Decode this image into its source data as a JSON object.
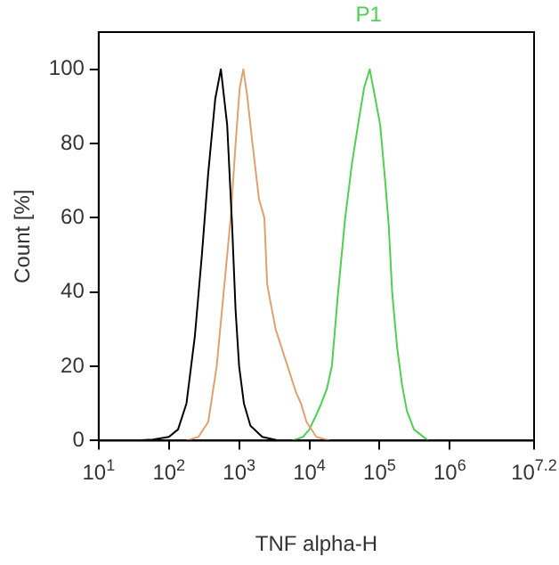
{
  "chart_data": {
    "type": "line",
    "title": "P1",
    "xlabel": "TNF alpha-H",
    "ylabel": "Count [%]",
    "log": "x",
    "grid": false,
    "legend": false,
    "marker": "none",
    "line_style": "solid",
    "xlim": [
      10,
      15848932
    ],
    "xticks": [
      {
        "value": 10,
        "label": "10$^{1}$"
      },
      {
        "value": 100,
        "label": "10$^{2}$"
      },
      {
        "value": 1000,
        "label": "10$^{3}$"
      },
      {
        "value": 10000,
        "label": "10$^{4}$"
      },
      {
        "value": 100000,
        "label": "10$^{5}$"
      },
      {
        "value": 1000000,
        "label": "10$^{6}$"
      },
      {
        "value": 15848932,
        "label": "10$^{7.2}$"
      }
    ],
    "ylim": [
      0,
      110
    ],
    "yticks": [
      0,
      20,
      40,
      60,
      80,
      100
    ],
    "series": [
      {
        "color": "#000000",
        "x": [
          30,
          59,
          100,
          135,
          178,
          234,
          295,
          363,
          457,
          550,
          676,
          794,
          891,
          1000,
          1170,
          1450,
          2140,
          3720
        ],
        "values": [
          0,
          0.3,
          1,
          3,
          10,
          28,
          50,
          72,
          92,
          100,
          85,
          58,
          35,
          20,
          10,
          4,
          1,
          0
        ]
      },
      {
        "color": "#e0a070",
        "x": [
          178,
          263,
          363,
          479,
          603,
          759,
          891,
          1020,
          1150,
          1300,
          1550,
          1920,
          2290,
          2510,
          3310,
          4900,
          6460,
          7590,
          9120,
          12600,
          19500
        ],
        "values": [
          0,
          1,
          5,
          20,
          40,
          60,
          80,
          95,
          100,
          93,
          80,
          65,
          60,
          42,
          30,
          20,
          13,
          10,
          5,
          1,
          0
        ]
      },
      {
        "color": "#50d050",
        "x": [
          5750,
          8130,
          10000,
          12600,
          14800,
          17800,
          20900,
          25700,
          32400,
          40700,
          51300,
          60300,
          72400,
          87100,
          102000,
          120000,
          135000,
          151000,
          178000,
          209000,
          245000,
          309000,
          490000
        ],
        "values": [
          0,
          1,
          3,
          7,
          10,
          14,
          20,
          40,
          60,
          75,
          87,
          95,
          100,
          92,
          85,
          70,
          58,
          40,
          25,
          15,
          8,
          3,
          0
        ]
      }
    ]
  }
}
